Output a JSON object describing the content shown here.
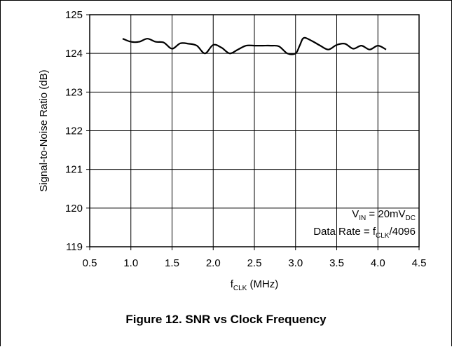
{
  "figure": {
    "caption": "Figure 12. SNR vs Clock Frequency"
  },
  "chart_data": {
    "type": "line",
    "title": "",
    "xlabel": {
      "main": "f",
      "sub": "CLK",
      "tail": " (MHz)"
    },
    "ylabel": "Signal-to-Noise Ratio (dB)",
    "xlim": [
      0.5,
      4.5
    ],
    "ylim": [
      119,
      125
    ],
    "x_ticks": [
      "0.5",
      "1.0",
      "1.5",
      "2.0",
      "2.5",
      "3.0",
      "3.5",
      "4.0",
      "4.5"
    ],
    "y_ticks": [
      "119",
      "120",
      "121",
      "122",
      "123",
      "124",
      "125"
    ],
    "grid": true,
    "annotations": [
      {
        "parts": [
          {
            "t": "V"
          },
          {
            "t": "IN",
            "sub": true
          },
          {
            "t": " = 20mV"
          },
          {
            "t": "DC",
            "sub": true
          }
        ]
      },
      {
        "parts": [
          {
            "t": "Data Rate = f"
          },
          {
            "t": "CLK",
            "sub": true
          },
          {
            "t": "/4096"
          }
        ]
      }
    ],
    "series": [
      {
        "color": "#000000",
        "x": [
          0.9,
          1.0,
          1.1,
          1.2,
          1.3,
          1.4,
          1.5,
          1.6,
          1.7,
          1.8,
          1.9,
          2.0,
          2.1,
          2.2,
          2.3,
          2.4,
          2.5,
          2.6,
          2.7,
          2.8,
          2.9,
          3.0,
          3.05,
          3.1,
          3.2,
          3.3,
          3.4,
          3.5,
          3.6,
          3.7,
          3.8,
          3.9,
          4.0,
          4.1
        ],
        "y": [
          124.38,
          124.3,
          124.3,
          124.38,
          124.3,
          124.28,
          124.12,
          124.26,
          124.25,
          124.2,
          124.0,
          124.22,
          124.15,
          124.0,
          124.1,
          124.2,
          124.2,
          124.2,
          124.2,
          124.18,
          124.0,
          124.0,
          124.2,
          124.4,
          124.32,
          124.2,
          124.1,
          124.22,
          124.25,
          124.12,
          124.2,
          124.1,
          124.2,
          124.1
        ]
      }
    ]
  }
}
